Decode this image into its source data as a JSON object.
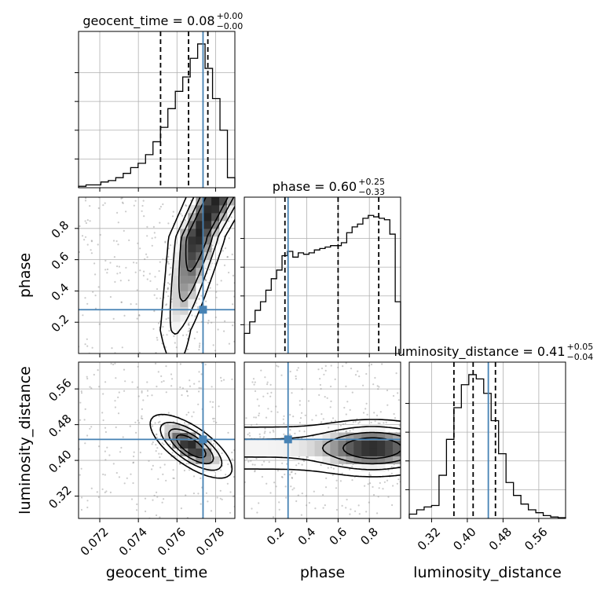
{
  "colors": {
    "truth": "#4682b4",
    "hist": "#000000",
    "grid": "#b0b0b0",
    "quantile": "#000000",
    "scatter": "#8c8c8c"
  },
  "chart_data": {
    "type": "corner",
    "parameters": [
      {
        "name": "geocent_time",
        "axis_label": "geocent_time",
        "range": [
          0.0709,
          0.079
        ],
        "ticks": [
          0.072,
          0.074,
          0.076,
          0.078
        ],
        "tick_labels": [
          "0.072",
          "0.074",
          "0.076",
          "0.078"
        ],
        "truth": 0.07735,
        "quantiles": [
          0.07515,
          0.0766,
          0.0776
        ],
        "title": {
          "main": "geocent_time = 0.08",
          "plus": "+0.00",
          "minus": "−0.00"
        },
        "hist_max": 1.0,
        "hist": [
          0.01,
          0.02,
          0.02,
          0.04,
          0.05,
          0.07,
          0.1,
          0.14,
          0.17,
          0.23,
          0.32,
          0.42,
          0.55,
          0.67,
          0.77,
          0.9,
          1.0,
          0.83,
          0.62,
          0.4,
          0.07
        ]
      },
      {
        "name": "phase",
        "axis_label": "phase",
        "range": [
          0.0,
          1.0
        ],
        "ticks": [
          0.2,
          0.4,
          0.6,
          0.8
        ],
        "tick_labels": [
          "0.2",
          "0.4",
          "0.6",
          "0.8"
        ],
        "truth": 0.28,
        "quantiles": [
          0.26,
          0.6,
          0.86
        ],
        "title": {
          "main": "phase = 0.60",
          "plus": "+0.25",
          "minus": "−0.33"
        },
        "hist_max": 1.0,
        "hist": [
          0.14,
          0.22,
          0.3,
          0.36,
          0.44,
          0.52,
          0.58,
          0.68,
          0.71,
          0.67,
          0.7,
          0.69,
          0.7,
          0.72,
          0.73,
          0.74,
          0.75,
          0.75,
          0.77,
          0.84,
          0.88,
          0.9,
          0.94,
          0.96,
          0.95,
          0.94,
          0.93,
          0.83,
          0.36
        ]
      },
      {
        "name": "luminosity_distance",
        "axis_label": "luminosity_distance",
        "range": [
          0.27,
          0.62
        ],
        "ticks": [
          0.32,
          0.4,
          0.48,
          0.56
        ],
        "tick_labels": [
          "0.32",
          "0.40",
          "0.48",
          "0.56"
        ],
        "truth": 0.447,
        "quantiles": [
          0.37,
          0.413,
          0.463
        ],
        "title": {
          "main": "luminosity_distance = 0.41",
          "plus": "+0.05",
          "minus": "−0.04"
        },
        "hist_max": 1.0,
        "hist": [
          0.03,
          0.06,
          0.08,
          0.09,
          0.3,
          0.55,
          0.77,
          0.93,
          1.0,
          0.97,
          0.87,
          0.68,
          0.45,
          0.25,
          0.16,
          0.1,
          0.06,
          0.04,
          0.02,
          0.01,
          0.005
        ]
      }
    ],
    "grid": true
  }
}
